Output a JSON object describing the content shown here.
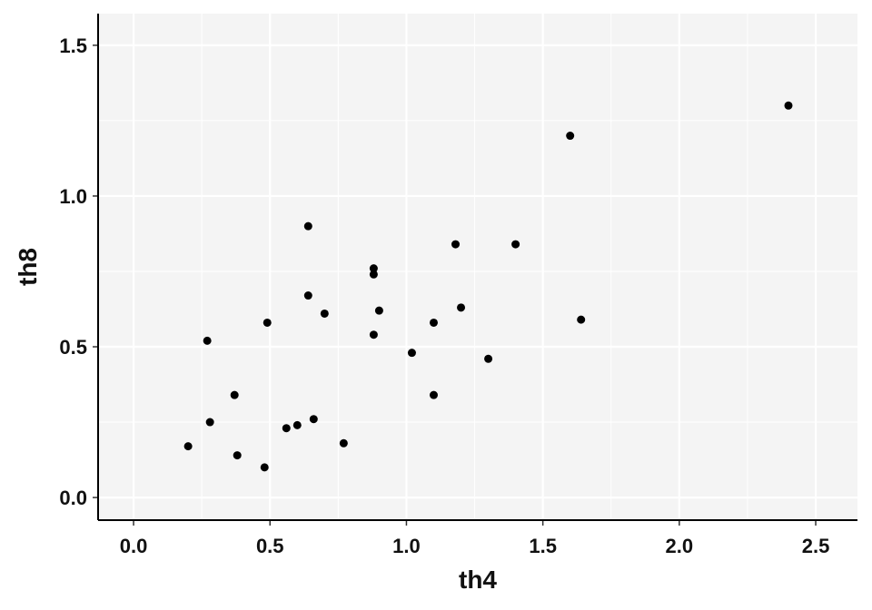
{
  "chart_data": {
    "type": "scatter",
    "x_label": "th4",
    "y_label": "th8",
    "x": [
      0.2,
      0.27,
      0.28,
      0.37,
      0.38,
      0.48,
      0.49,
      0.56,
      0.6,
      0.64,
      0.64,
      0.66,
      0.7,
      0.77,
      0.88,
      0.88,
      0.88,
      0.9,
      1.02,
      1.1,
      1.1,
      1.18,
      1.2,
      1.3,
      1.4,
      1.6,
      1.64,
      2.4
    ],
    "values": [
      0.17,
      0.52,
      0.25,
      0.34,
      0.14,
      0.1,
      0.58,
      0.23,
      0.24,
      0.9,
      0.67,
      0.26,
      0.61,
      0.18,
      0.76,
      0.74,
      0.54,
      0.62,
      0.48,
      0.58,
      0.34,
      0.84,
      0.63,
      0.46,
      0.84,
      1.2,
      0.59,
      1.3
    ],
    "color": "#000000",
    "xlim": [
      -0.13,
      2.653
    ],
    "ylim": [
      -0.075,
      1.605
    ],
    "xticks": [
      {
        "value": 0,
        "label": "0.0"
      },
      0.5,
      {
        "value": 1,
        "label": "1.0"
      },
      1.5,
      {
        "value": 2,
        "label": "2.0"
      },
      2.5
    ],
    "yticks": [
      {
        "value": 0,
        "label": "0.0"
      },
      0.5,
      {
        "value": 1,
        "label": "1.0"
      },
      1.5
    ],
    "grid": true,
    "minor_grid": true,
    "background": "#f4f4f4"
  }
}
